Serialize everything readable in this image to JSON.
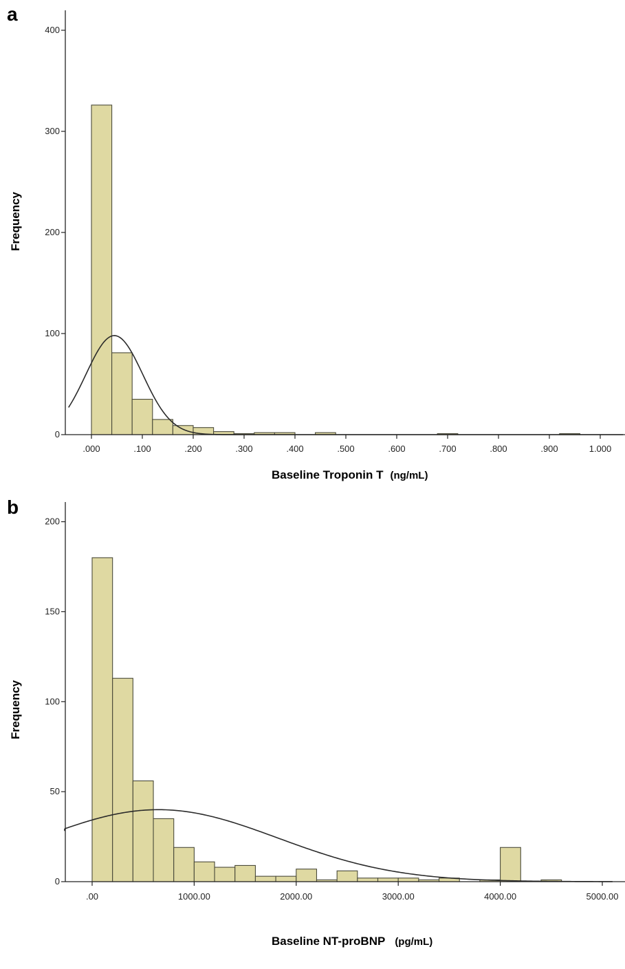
{
  "chart_data": [
    {
      "panel": "a",
      "type": "bar",
      "subtype": "histogram",
      "xlabel": "Baseline Troponin T",
      "xunit": "(ng/mL)",
      "ylabel": "Frequency",
      "xlim": [
        -0.045,
        1.045
      ],
      "ylim": [
        0,
        400
      ],
      "x_ticks": [
        0,
        0.1,
        0.2,
        0.3,
        0.4,
        0.5,
        0.6,
        0.7,
        0.8,
        0.9,
        1.0
      ],
      "x_tick_labels": [
        ".000",
        ".100",
        ".200",
        ".300",
        ".400",
        ".500",
        ".600",
        ".700",
        ".800",
        ".900",
        "1.000"
      ],
      "y_ticks": [
        0,
        100,
        200,
        300,
        400
      ],
      "y_tick_labels": [
        "0",
        "100",
        "200",
        "300",
        "400"
      ],
      "bin_width": 0.04,
      "bins": [
        {
          "start": 0.0,
          "count": 326
        },
        {
          "start": 0.04,
          "count": 81
        },
        {
          "start": 0.08,
          "count": 35
        },
        {
          "start": 0.12,
          "count": 15
        },
        {
          "start": 0.16,
          "count": 9
        },
        {
          "start": 0.2,
          "count": 7
        },
        {
          "start": 0.24,
          "count": 3
        },
        {
          "start": 0.28,
          "count": 1
        },
        {
          "start": 0.32,
          "count": 2
        },
        {
          "start": 0.36,
          "count": 2
        },
        {
          "start": 0.44,
          "count": 2
        },
        {
          "start": 0.68,
          "count": 1
        },
        {
          "start": 0.92,
          "count": 1
        }
      ],
      "normal_curve": {
        "mean": 0.045,
        "sd": 0.056,
        "peak": 98
      },
      "bar_color": "#dfd9a2"
    },
    {
      "panel": "b",
      "type": "bar",
      "subtype": "histogram",
      "xlabel": "Baseline NT-proBNP",
      "xunit": "(pg/mL)",
      "ylabel": "Frequency",
      "xlim": [
        -330,
        5100
      ],
      "ylim": [
        0,
        210
      ],
      "x_ticks": [
        0,
        1000,
        2000,
        3000,
        4000,
        5000
      ],
      "x_tick_labels": [
        ".00",
        "1000.00",
        "2000.00",
        "3000.00",
        "4000.00",
        "5000.00"
      ],
      "y_ticks": [
        0,
        50,
        100,
        150,
        200
      ],
      "y_tick_labels": [
        "0",
        "50",
        "100",
        "150",
        "200"
      ],
      "bin_width": 200,
      "bins": [
        {
          "start": 0,
          "count": 180
        },
        {
          "start": 200,
          "count": 113
        },
        {
          "start": 400,
          "count": 56
        },
        {
          "start": 600,
          "count": 35
        },
        {
          "start": 800,
          "count": 19
        },
        {
          "start": 1000,
          "count": 11
        },
        {
          "start": 1200,
          "count": 8
        },
        {
          "start": 1400,
          "count": 9
        },
        {
          "start": 1600,
          "count": 3
        },
        {
          "start": 1800,
          "count": 3
        },
        {
          "start": 2000,
          "count": 7
        },
        {
          "start": 2200,
          "count": 1
        },
        {
          "start": 2400,
          "count": 6
        },
        {
          "start": 2600,
          "count": 2
        },
        {
          "start": 2800,
          "count": 2
        },
        {
          "start": 3000,
          "count": 2
        },
        {
          "start": 3200,
          "count": 1
        },
        {
          "start": 3400,
          "count": 2
        },
        {
          "start": 3800,
          "count": 1
        },
        {
          "start": 4000,
          "count": 19
        },
        {
          "start": 4400,
          "count": 1
        }
      ],
      "normal_curve": {
        "mean": 650,
        "sd": 1170,
        "peak": 40
      },
      "bar_color": "#dfd9a2"
    }
  ]
}
